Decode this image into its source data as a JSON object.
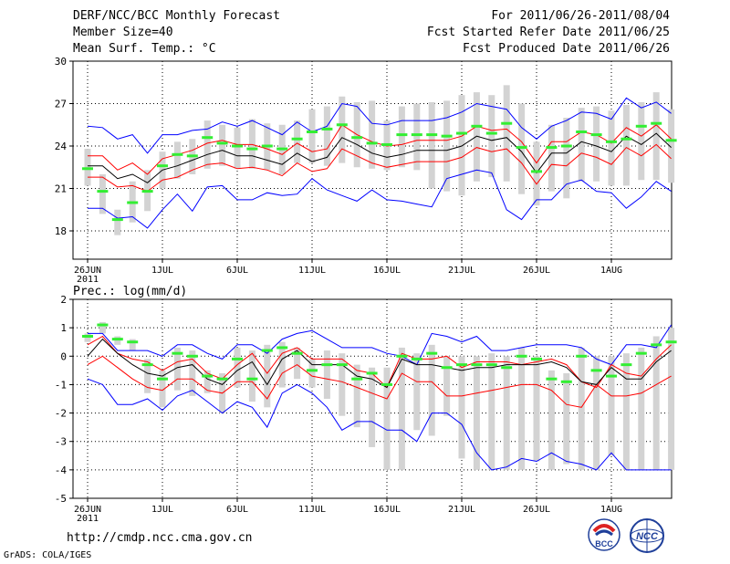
{
  "header": {
    "title": "DERF/NCC/BCC Monthly Forecast",
    "member_size": "Member Size=40",
    "variable": "Mean Surf. Temp.: °C",
    "period": "For 2011/06/26-2011/08/04",
    "start_date": "Fcst Started Refer Date 2011/06/25",
    "produced_date": "Fcst Produced Date 2011/06/26"
  },
  "footer": {
    "url": "http://cmdp.ncc.cma.gov.cn",
    "credit": "GrADS: COLA/IGES",
    "logo_bcc_text": "BCC",
    "logo_ncc_text": "NCC"
  },
  "colors": {
    "envelope": "#0000ff",
    "spread": "#ff0000",
    "mean": "#000000",
    "observed": "#33ee33",
    "box": "#d3d3d3"
  },
  "chart_data": [
    {
      "type": "line",
      "title": "Mean Surf. Temp.: °C",
      "xlabel": "",
      "ylabel": "°C",
      "x_ticks": [
        "26JUN",
        "1JUL",
        "6JUL",
        "11JUL",
        "16JUL",
        "21JUL",
        "26JUL",
        "1AUG"
      ],
      "x_year": "2011",
      "ylim": [
        16,
        30
      ],
      "y_ticks": [
        18,
        21,
        24,
        27,
        30
      ],
      "days": 40,
      "series": [
        {
          "name": "max",
          "values": [
            25.4,
            25.3,
            24.5,
            24.8,
            23.5,
            24.8,
            24.8,
            25.1,
            25.2,
            25.7,
            25.4,
            25.8,
            25.3,
            24.8,
            25.7,
            25.0,
            25.4,
            27.0,
            26.8,
            25.6,
            25.5,
            25.8,
            25.8,
            25.8,
            26.0,
            26.4,
            27.0,
            26.8,
            26.6,
            25.3,
            24.5,
            25.4,
            25.8,
            26.4,
            26.3,
            25.9,
            27.4,
            26.7,
            27.1,
            26.3
          ]
        },
        {
          "name": "upper",
          "values": [
            23.3,
            23.3,
            22.3,
            22.8,
            22.0,
            23.1,
            23.4,
            23.7,
            24.2,
            24.4,
            24.1,
            24.1,
            23.8,
            23.4,
            24.2,
            23.6,
            23.8,
            25.5,
            24.8,
            24.3,
            24.0,
            24.1,
            24.4,
            24.4,
            24.4,
            24.7,
            25.4,
            25.1,
            25.2,
            24.3,
            22.8,
            24.3,
            24.3,
            25.0,
            24.8,
            24.2,
            25.3,
            24.7,
            25.5,
            24.5
          ]
        },
        {
          "name": "mean",
          "values": [
            22.6,
            22.6,
            21.7,
            22.0,
            21.4,
            22.3,
            22.6,
            23.0,
            23.4,
            23.7,
            23.3,
            23.3,
            23.0,
            22.7,
            23.5,
            22.9,
            23.2,
            24.6,
            24.1,
            23.5,
            23.2,
            23.4,
            23.7,
            23.7,
            23.7,
            24.0,
            24.7,
            24.4,
            24.6,
            23.6,
            22.1,
            23.5,
            23.5,
            24.3,
            24.0,
            23.6,
            24.7,
            24.1,
            24.9,
            23.9
          ]
        },
        {
          "name": "lower",
          "values": [
            21.8,
            21.8,
            21.1,
            21.2,
            20.8,
            21.6,
            21.8,
            22.3,
            22.7,
            22.8,
            22.4,
            22.5,
            22.3,
            21.9,
            22.8,
            22.2,
            22.4,
            23.8,
            23.3,
            22.8,
            22.5,
            22.7,
            22.9,
            22.9,
            22.9,
            23.2,
            23.9,
            23.6,
            23.8,
            22.8,
            21.3,
            22.7,
            22.6,
            23.5,
            23.2,
            22.7,
            23.9,
            23.3,
            24.1,
            23.1
          ]
        },
        {
          "name": "min",
          "values": [
            19.6,
            19.6,
            18.9,
            19.0,
            18.2,
            19.5,
            20.6,
            19.4,
            21.1,
            21.2,
            20.2,
            20.2,
            20.7,
            20.5,
            20.6,
            21.7,
            20.9,
            20.5,
            20.1,
            20.9,
            20.2,
            20.1,
            19.9,
            19.7,
            21.7,
            22.0,
            22.3,
            22.1,
            19.5,
            18.8,
            20.2,
            20.2,
            21.3,
            21.6,
            20.8,
            20.7,
            19.6,
            20.4,
            21.5,
            20.8
          ]
        },
        {
          "name": "observed",
          "values": [
            22.4,
            20.8,
            18.8,
            20.0,
            20.8,
            22.6,
            23.4,
            23.3,
            24.6,
            24.2,
            24.0,
            23.8,
            24.0,
            23.8,
            24.5,
            25.0,
            25.2,
            25.5,
            24.6,
            24.2,
            24.1,
            24.8,
            24.8,
            24.8,
            24.7,
            24.9,
            25.4,
            24.9,
            25.6,
            23.9,
            22.2,
            23.9,
            24.0,
            25.0,
            24.8,
            24.3,
            24.5,
            25.4,
            25.6,
            24.4
          ]
        },
        {
          "name": "box_high",
          "values": [
            23.8,
            22.0,
            19.5,
            21.5,
            22.3,
            23.6,
            24.3,
            24.5,
            25.8,
            25.5,
            25.3,
            25.9,
            25.6,
            25.5,
            25.8,
            26.6,
            26.8,
            27.5,
            27.1,
            27.2,
            25.8,
            26.8,
            27.0,
            27.1,
            27.2,
            27.6,
            27.8,
            27.6,
            28.3,
            27.0,
            24.3,
            25.5,
            26.0,
            26.7,
            26.8,
            26.5,
            26.9,
            27.1,
            27.8,
            26.6
          ]
        },
        {
          "name": "box_low",
          "values": [
            21.2,
            19.2,
            17.7,
            18.6,
            19.4,
            21.0,
            21.7,
            22.0,
            22.4,
            22.6,
            22.4,
            22.4,
            22.3,
            22.0,
            22.8,
            22.8,
            22.6,
            22.8,
            22.5,
            22.4,
            22.3,
            22.5,
            22.3,
            21.0,
            20.8,
            20.5,
            21.5,
            21.8,
            21.5,
            20.6,
            19.8,
            20.8,
            20.3,
            21.5,
            21.5,
            21.2,
            21.2,
            21.6,
            21.6,
            21.4
          ]
        }
      ]
    },
    {
      "type": "line",
      "title": "Prec.: log(mm/d)",
      "xlabel": "",
      "ylabel": "log(mm/d)",
      "x_ticks": [
        "26JUN",
        "1JUL",
        "6JUL",
        "11JUL",
        "16JUL",
        "21JUL",
        "26JUL",
        "1AUG"
      ],
      "x_year": "2011",
      "ylim": [
        -5,
        2
      ],
      "y_ticks": [
        -5,
        -4,
        -3,
        -2,
        -1,
        0,
        1,
        2
      ],
      "days": 40,
      "series": [
        {
          "name": "max",
          "values": [
            0.8,
            0.8,
            0.2,
            0.2,
            0.2,
            0.0,
            0.4,
            0.4,
            0.1,
            -0.1,
            0.4,
            0.4,
            0.1,
            0.6,
            0.8,
            0.9,
            0.6,
            0.3,
            0.3,
            0.3,
            0.1,
            0.0,
            -0.3,
            0.8,
            0.7,
            0.5,
            0.7,
            0.2,
            0.2,
            0.3,
            0.4,
            0.4,
            0.4,
            0.3,
            -0.1,
            -0.3,
            0.4,
            0.4,
            0.3,
            1.1
          ]
        },
        {
          "name": "upper",
          "values": [
            0.4,
            0.7,
            0.1,
            -0.1,
            -0.2,
            -0.5,
            -0.2,
            -0.1,
            -0.6,
            -0.8,
            -0.3,
            0.1,
            -0.6,
            0.1,
            0.3,
            -0.1,
            -0.1,
            -0.1,
            -0.5,
            -0.6,
            -1.1,
            0.1,
            -0.1,
            -0.1,
            0.0,
            -0.4,
            -0.2,
            -0.2,
            -0.2,
            -0.3,
            -0.2,
            -0.1,
            -0.3,
            -0.9,
            -1.1,
            -0.3,
            -0.6,
            -0.7,
            -0.1,
            0.4
          ]
        },
        {
          "name": "mean",
          "values": [
            0.0,
            0.6,
            0.1,
            -0.3,
            -0.6,
            -0.7,
            -0.4,
            -0.3,
            -0.8,
            -1.0,
            -0.5,
            -0.2,
            -1.0,
            -0.1,
            0.2,
            -0.3,
            -0.3,
            -0.3,
            -0.7,
            -0.8,
            -1.1,
            -0.1,
            -0.3,
            -0.3,
            -0.4,
            -0.5,
            -0.4,
            -0.4,
            -0.3,
            -0.3,
            -0.3,
            -0.2,
            -0.4,
            -0.9,
            -1.0,
            -0.4,
            -0.8,
            -0.8,
            -0.2,
            0.2
          ]
        },
        {
          "name": "lower",
          "values": [
            -0.3,
            0.0,
            -0.4,
            -0.8,
            -1.1,
            -1.2,
            -0.8,
            -0.8,
            -1.2,
            -1.3,
            -0.9,
            -0.9,
            -1.5,
            -0.6,
            -0.3,
            -0.7,
            -0.8,
            -0.9,
            -1.1,
            -1.3,
            -1.5,
            -0.6,
            -0.9,
            -0.9,
            -1.4,
            -1.4,
            -1.3,
            -1.2,
            -1.1,
            -1.0,
            -1.0,
            -1.2,
            -1.7,
            -1.8,
            -1.0,
            -1.4,
            -1.4,
            -1.3,
            -1.0,
            -0.7
          ]
        },
        {
          "name": "min",
          "values": [
            -0.8,
            -1.0,
            -1.7,
            -1.7,
            -1.5,
            -1.9,
            -1.4,
            -1.2,
            -1.6,
            -2.0,
            -1.6,
            -1.8,
            -2.5,
            -1.3,
            -1.0,
            -1.3,
            -1.8,
            -2.6,
            -2.3,
            -2.3,
            -2.6,
            -2.6,
            -3.0,
            -2.0,
            -2.0,
            -2.4,
            -3.4,
            -4.0,
            -3.9,
            -3.6,
            -3.7,
            -3.4,
            -3.7,
            -3.8,
            -4.0,
            -3.4,
            -4.0,
            -4.0,
            -4.0,
            -4.0
          ]
        },
        {
          "name": "observed",
          "values": [
            0.7,
            1.1,
            0.6,
            0.5,
            -0.3,
            -0.8,
            0.1,
            0.0,
            -0.7,
            -0.8,
            -0.1,
            -0.8,
            0.2,
            0.3,
            0.1,
            -0.5,
            -0.3,
            -0.3,
            -0.8,
            -0.6,
            -1.0,
            0.0,
            -0.1,
            0.1,
            -0.4,
            -0.3,
            -0.3,
            -0.3,
            -0.4,
            0.0,
            -0.1,
            -0.8,
            -0.9,
            0.0,
            -0.5,
            -0.7,
            -0.3,
            0.1,
            0.4,
            0.5
          ]
        },
        {
          "name": "box_high",
          "values": [
            0.8,
            1.2,
            0.7,
            0.6,
            -0.1,
            -0.5,
            0.3,
            0.2,
            -0.5,
            -0.6,
            0.3,
            0.2,
            0.4,
            0.5,
            0.3,
            -0.1,
            0.2,
            0.1,
            -0.3,
            -0.4,
            -0.4,
            0.3,
            0.1,
            0.4,
            0.0,
            0.0,
            0.0,
            0.1,
            0.0,
            0.3,
            0.0,
            -0.5,
            -0.6,
            0.3,
            0.0,
            0.0,
            0.1,
            0.3,
            0.7,
            1.0
          ]
        },
        {
          "name": "box_low",
          "values": [
            0.5,
            0.8,
            0.4,
            0.2,
            -1.3,
            -1.8,
            -1.2,
            -1.4,
            -1.3,
            -2.0,
            -1.1,
            -1.6,
            -1.8,
            -1.1,
            -0.8,
            -1.1,
            -1.5,
            -2.1,
            -2.5,
            -3.2,
            -4.0,
            -4.0,
            -2.6,
            -2.8,
            -2.1,
            -3.6,
            -4.0,
            -4.0,
            -4.0,
            -4.0,
            -3.7,
            -4.0,
            -3.8,
            -4.0,
            -4.0,
            -3.5,
            -4.0,
            -4.0,
            -4.0,
            -4.0
          ]
        }
      ]
    }
  ]
}
